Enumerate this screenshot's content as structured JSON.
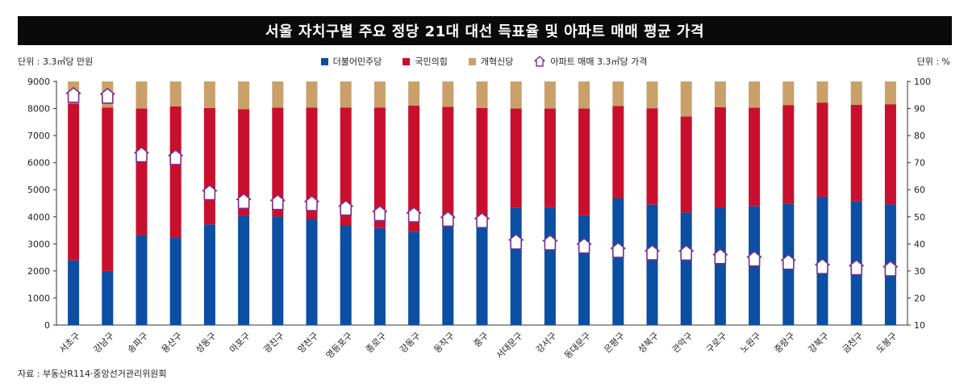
{
  "title": "서울 자치구별 주요 정당 21대 대선 득표율 및 아파트 매매 평균 가격",
  "left_unit": "단위 : 3.3㎡당 만원",
  "right_unit": "단위 : %",
  "source": "자료 : 부동산R114·중앙선거관리위원회",
  "legend": [
    {
      "label": "더불어민주당",
      "color": "#0b4ea2",
      "kind": "square"
    },
    {
      "label": "국민의힘",
      "color": "#c8102e",
      "kind": "square"
    },
    {
      "label": "개혁신당",
      "color": "#c9a06a",
      "kind": "square"
    },
    {
      "label": "아파트 매매 3.3㎡당 가격",
      "color": "#7b2d8e",
      "kind": "house"
    }
  ],
  "chart_data": {
    "type": "bar",
    "stacked": true,
    "categories": [
      "서초구",
      "강남구",
      "송파구",
      "용산구",
      "성동구",
      "마포구",
      "광진구",
      "양천구",
      "영등포구",
      "종로구",
      "강동구",
      "동작구",
      "중구",
      "서대문구",
      "강서구",
      "동대문구",
      "은평구",
      "성북구",
      "관악구",
      "구로구",
      "노원구",
      "중랑구",
      "강북구",
      "금천구",
      "도봉구"
    ],
    "series": [
      {
        "name": "더불어민주당",
        "axis": "right",
        "color": "#0b4ea2",
        "values": [
          33.9,
          30.0,
          43.2,
          42.2,
          47.2,
          50.4,
          50.1,
          49.2,
          46.8,
          45.8,
          44.5,
          48.8,
          48.8,
          53.4,
          53.6,
          50.6,
          56.8,
          54.5,
          51.6,
          53.5,
          53.9,
          54.8,
          57.4,
          55.8,
          54.6
        ]
      },
      {
        "name": "국민의힘",
        "axis": "right",
        "color": "#c8102e",
        "values": [
          57.9,
          60.4,
          46.8,
          48.6,
          43.0,
          39.4,
          40.2,
          41.2,
          43.6,
          44.6,
          46.6,
          41.8,
          41.4,
          36.6,
          36.4,
          39.4,
          34.1,
          35.6,
          35.5,
          37.0,
          36.4,
          36.5,
          34.8,
          35.6,
          37.0
        ]
      },
      {
        "name": "개혁신당",
        "axis": "right",
        "color": "#c9a06a",
        "values": [
          8.2,
          9.6,
          10.0,
          9.2,
          9.8,
          10.2,
          9.7,
          9.6,
          9.6,
          9.6,
          8.9,
          9.4,
          9.8,
          10.0,
          10.0,
          10.0,
          9.1,
          9.9,
          12.9,
          9.5,
          9.7,
          8.7,
          7.8,
          8.6,
          8.4
        ]
      },
      {
        "name": "아파트 매매 3.3㎡당 가격",
        "axis": "left",
        "color": "#7b2d8e",
        "marker": "house",
        "values": [
          8500,
          8470,
          6300,
          6200,
          4900,
          4580,
          4540,
          4500,
          4330,
          4130,
          4080,
          3920,
          3870,
          3080,
          3050,
          2930,
          2770,
          2680,
          2670,
          2540,
          2450,
          2330,
          2170,
          2130,
          2090
        ]
      }
    ],
    "y_left": {
      "label": "단위 : 3.3㎡당 만원",
      "lim": [
        0,
        9000
      ],
      "ticks": [
        0,
        1000,
        2000,
        3000,
        4000,
        5000,
        6000,
        7000,
        8000,
        9000
      ]
    },
    "y_right": {
      "label": "단위 : %",
      "lim": [
        10,
        100
      ],
      "ticks": [
        10,
        20,
        30,
        40,
        50,
        60,
        70,
        80,
        90,
        100
      ]
    },
    "grid": false,
    "legend_position": "top"
  }
}
